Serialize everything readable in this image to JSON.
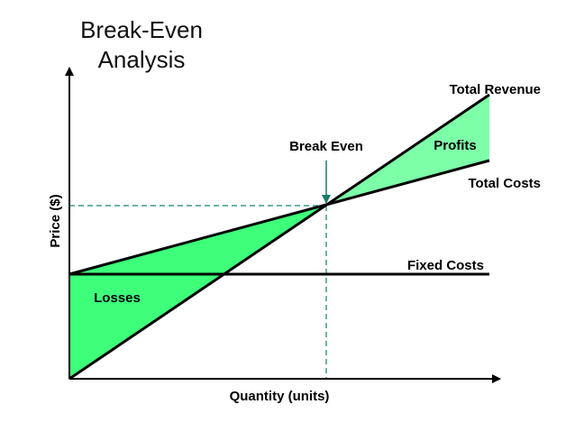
{
  "title": {
    "line1": "Break-Even",
    "line2": "Analysis"
  },
  "labels": {
    "total_revenue": "Total Revenue",
    "profits": "Profits",
    "break_even": "Break Even",
    "total_costs": "Total Costs",
    "fixed_costs": "Fixed Costs",
    "losses": "Losses"
  },
  "axes": {
    "y_label": "Price ($)",
    "x_label": "Quantity (units)"
  }
}
